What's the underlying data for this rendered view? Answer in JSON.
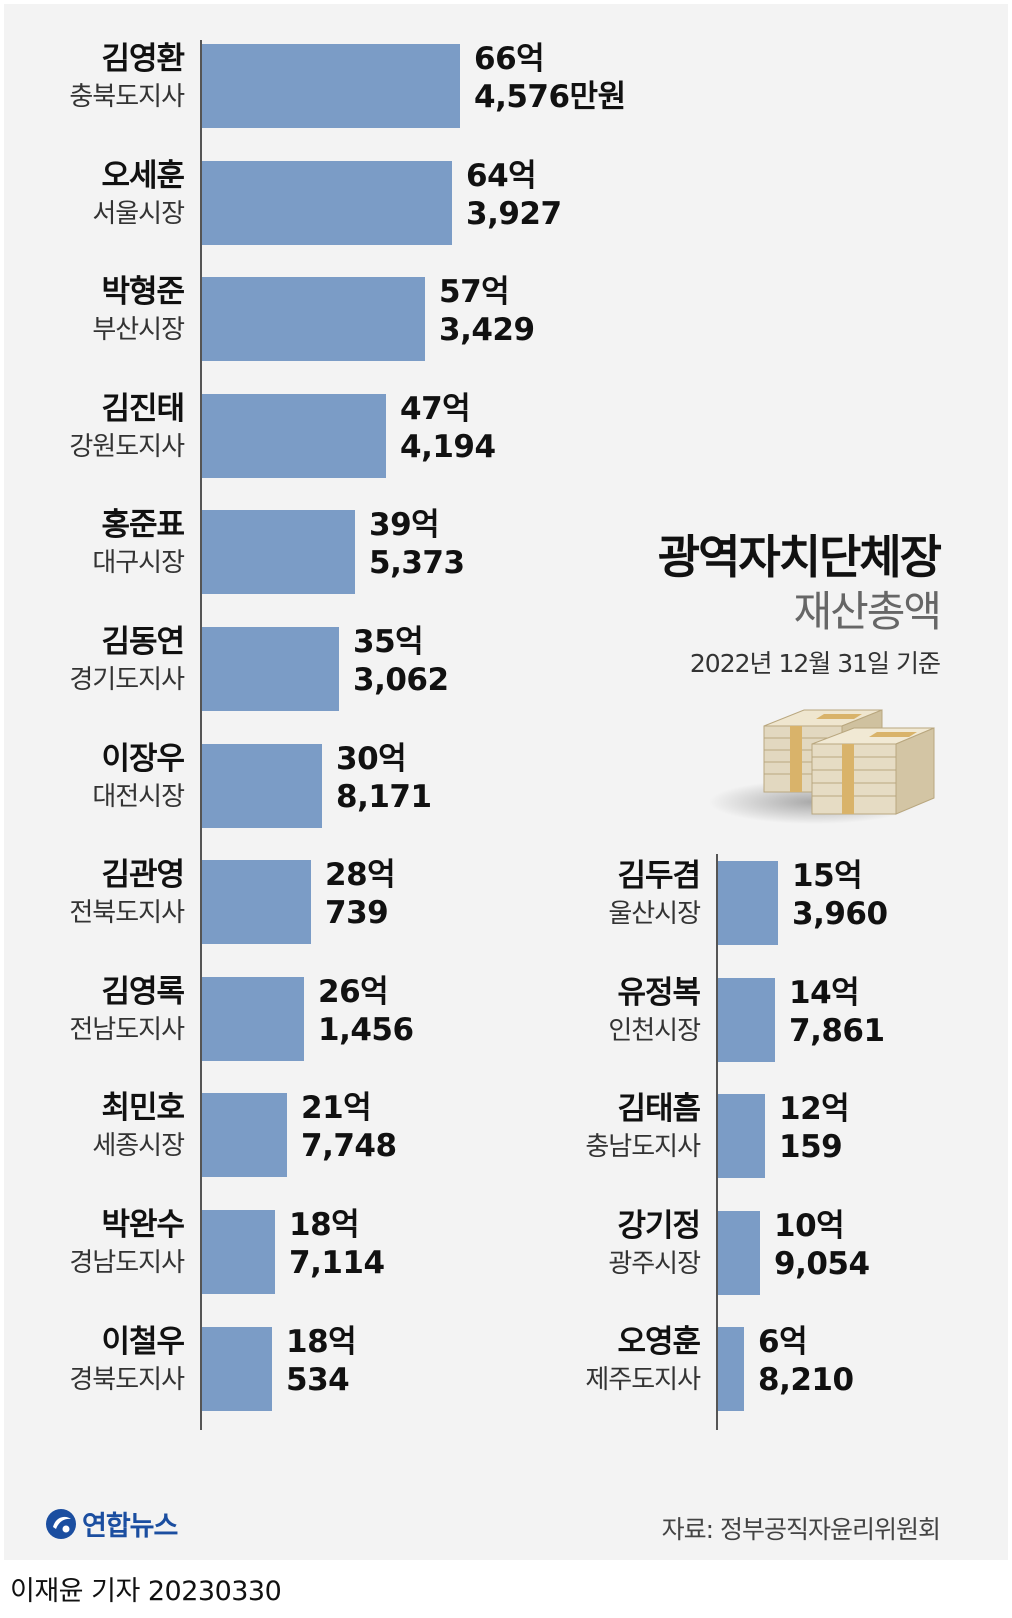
{
  "title": "광역자치단체장",
  "subtitle": "재산총액",
  "base_date": "2022년 12월 31일 기준",
  "source": "자료: 정부공직자윤리위원회",
  "logo_text": "연합뉴스",
  "credit": "이재윤 기자  20230330",
  "colors": {
    "bar": "#7b9cc6",
    "axis": "#555555",
    "panel": "#f3f3f3"
  },
  "chart_data": {
    "type": "bar",
    "unit_note": "values in 만원",
    "left_column": [
      {
        "name": "김영환",
        "role": "충북도지사",
        "value": 664576,
        "label_line1": "66억",
        "label_line2": "4,576만원"
      },
      {
        "name": "오세훈",
        "role": "서울시장",
        "value": 643927,
        "label_line1": "64억",
        "label_line2": "3,927"
      },
      {
        "name": "박형준",
        "role": "부산시장",
        "value": 573429,
        "label_line1": "57억",
        "label_line2": "3,429"
      },
      {
        "name": "김진태",
        "role": "강원도지사",
        "value": 474194,
        "label_line1": "47억",
        "label_line2": "4,194"
      },
      {
        "name": "홍준표",
        "role": "대구시장",
        "value": 395373,
        "label_line1": "39억",
        "label_line2": "5,373"
      },
      {
        "name": "김동연",
        "role": "경기도지사",
        "value": 353062,
        "label_line1": "35억",
        "label_line2": "3,062"
      },
      {
        "name": "이장우",
        "role": "대전시장",
        "value": 308171,
        "label_line1": "30억",
        "label_line2": "8,171"
      },
      {
        "name": "김관영",
        "role": "전북도지사",
        "value": 280739,
        "label_line1": "28억",
        "label_line2": "739"
      },
      {
        "name": "김영록",
        "role": "전남도지사",
        "value": 261456,
        "label_line1": "26억",
        "label_line2": "1,456"
      },
      {
        "name": "최민호",
        "role": "세종시장",
        "value": 217748,
        "label_line1": "21억",
        "label_line2": "7,748"
      },
      {
        "name": "박완수",
        "role": "경남도지사",
        "value": 187114,
        "label_line1": "18억",
        "label_line2": "7,114"
      },
      {
        "name": "이철우",
        "role": "경북도지사",
        "value": 180534,
        "label_line1": "18억",
        "label_line2": "534"
      }
    ],
    "right_column": [
      {
        "name": "김두겸",
        "role": "울산시장",
        "value": 153960,
        "label_line1": "15억",
        "label_line2": "3,960"
      },
      {
        "name": "유정복",
        "role": "인천시장",
        "value": 147861,
        "label_line1": "14억",
        "label_line2": "7,861"
      },
      {
        "name": "김태흠",
        "role": "충남도지사",
        "value": 120159,
        "label_line1": "12억",
        "label_line2": "159"
      },
      {
        "name": "강기정",
        "role": "광주시장",
        "value": 109054,
        "label_line1": "10억",
        "label_line2": "9,054"
      },
      {
        "name": "오영훈",
        "role": "제주도지사",
        "value": 68210,
        "label_line1": "6억",
        "label_line2": "8,210"
      }
    ]
  }
}
